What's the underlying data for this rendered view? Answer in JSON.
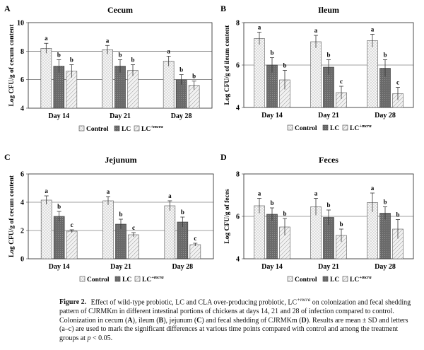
{
  "caption": {
    "label": "Figure 2.",
    "text_1": "Effect of wild-type probiotic, LC and CLA over-producing probiotic, LC",
    "sup_mcra": "+mcra",
    "text_2": " on colonization and fecal shedding pattern of CJRMKm in different intestinal portions of chickens at days 14, 21 and 28 of infection compared to control. Colonization in cecum (",
    "panel_a": "A",
    "text_3": "), ileum (",
    "panel_b": "B",
    "text_4": "), jejunum (",
    "panel_c": "C",
    "text_5": ") and fecal shedding of CJRMKm (",
    "panel_d": "D",
    "text_6": "). Results are mean ± SD and letters (a–c) are used to mark the significant differences at various time points compared with control and among the treatment groups at ",
    "p_label": "p",
    "text_7": " < 0.05."
  },
  "legend": {
    "control": "Control",
    "lc": "LC",
    "lcm_base": "LC",
    "lcm_sup": "+mcra"
  },
  "colors": {
    "control_fill": "#f4f4f4",
    "lc_fill": "#6e6e6e",
    "lcm_fill": "#f0f0f0",
    "axis": "#222222"
  },
  "chart_data": [
    {
      "panel": "A",
      "type": "bar",
      "title": "Cecum",
      "ylabel": "Log CFU/g of cecum content",
      "categories": [
        "Day 14",
        "Day 21",
        "Day 28"
      ],
      "ylim": [
        4,
        10
      ],
      "yticks": [
        4,
        6,
        8,
        10
      ],
      "gridlines": [
        6,
        8
      ],
      "series": [
        {
          "name": "Control",
          "values": [
            8.2,
            8.1,
            7.3
          ],
          "sd": [
            0.35,
            0.3,
            0.35
          ],
          "letters": [
            "a",
            "a",
            "a"
          ]
        },
        {
          "name": "LC",
          "values": [
            6.95,
            6.95,
            6.0
          ],
          "sd": [
            0.45,
            0.45,
            0.35
          ],
          "letters": [
            "b",
            "b",
            "b"
          ]
        },
        {
          "name": "LC+mcra",
          "values": [
            6.6,
            6.65,
            5.6
          ],
          "sd": [
            0.45,
            0.4,
            0.3
          ],
          "letters": [
            "b",
            "b",
            "b"
          ]
        }
      ]
    },
    {
      "panel": "B",
      "type": "bar",
      "title": "Ileum",
      "ylabel": "Log CFU/g of ileum content",
      "categories": [
        "Day 14",
        "Day 21",
        "Day 28"
      ],
      "ylim": [
        4,
        8
      ],
      "yticks": [
        4,
        6,
        8
      ],
      "gridlines": [
        6
      ],
      "series": [
        {
          "name": "Control",
          "values": [
            7.25,
            7.1,
            7.15
          ],
          "sd": [
            0.3,
            0.3,
            0.3
          ],
          "letters": [
            "a",
            "a",
            "a"
          ]
        },
        {
          "name": "LC",
          "values": [
            6.0,
            5.9,
            5.85
          ],
          "sd": [
            0.35,
            0.35,
            0.4
          ],
          "letters": [
            "b",
            "b",
            "b"
          ]
        },
        {
          "name": "LC+mcra",
          "values": [
            5.3,
            4.7,
            4.65
          ],
          "sd": [
            0.45,
            0.3,
            0.3
          ],
          "letters": [
            "b",
            "c",
            "c"
          ]
        }
      ]
    },
    {
      "panel": "C",
      "type": "bar",
      "title": "Jejunum",
      "ylabel": "Log CFU/g of cecum content",
      "categories": [
        "Day 14",
        "Day 21",
        "Day 28"
      ],
      "ylim": [
        0,
        6
      ],
      "yticks": [
        0,
        2,
        4,
        6
      ],
      "gridlines": [
        2,
        4
      ],
      "series": [
        {
          "name": "Control",
          "values": [
            4.15,
            4.1,
            3.75
          ],
          "sd": [
            0.3,
            0.3,
            0.35
          ],
          "letters": [
            "a",
            "a",
            "a"
          ]
        },
        {
          "name": "LC",
          "values": [
            3.0,
            2.45,
            2.6
          ],
          "sd": [
            0.35,
            0.35,
            0.35
          ],
          "letters": [
            "b",
            "b",
            "b"
          ]
        },
        {
          "name": "LC+mcra",
          "values": [
            1.95,
            1.7,
            1.0
          ],
          "sd": [
            0.1,
            0.15,
            0.1
          ],
          "letters": [
            "c",
            "c",
            "c"
          ]
        }
      ]
    },
    {
      "panel": "D",
      "type": "bar",
      "title": "Feces",
      "ylabel": "Log CFU/g of feces",
      "categories": [
        "Day 14",
        "Day 21",
        "Day 28"
      ],
      "ylim": [
        4,
        8
      ],
      "yticks": [
        4,
        6,
        8
      ],
      "gridlines": [
        6
      ],
      "series": [
        {
          "name": "Control",
          "values": [
            6.5,
            6.45,
            6.65
          ],
          "sd": [
            0.35,
            0.4,
            0.45
          ],
          "letters": [
            "a",
            "a",
            "a"
          ]
        },
        {
          "name": "LC",
          "values": [
            6.1,
            5.95,
            6.15
          ],
          "sd": [
            0.3,
            0.35,
            0.3
          ],
          "letters": [
            "b",
            "b",
            "b"
          ]
        },
        {
          "name": "LC+mcra",
          "values": [
            5.5,
            5.1,
            5.4
          ],
          "sd": [
            0.4,
            0.3,
            0.45
          ],
          "letters": [
            "b",
            "b",
            "b"
          ]
        }
      ]
    }
  ]
}
